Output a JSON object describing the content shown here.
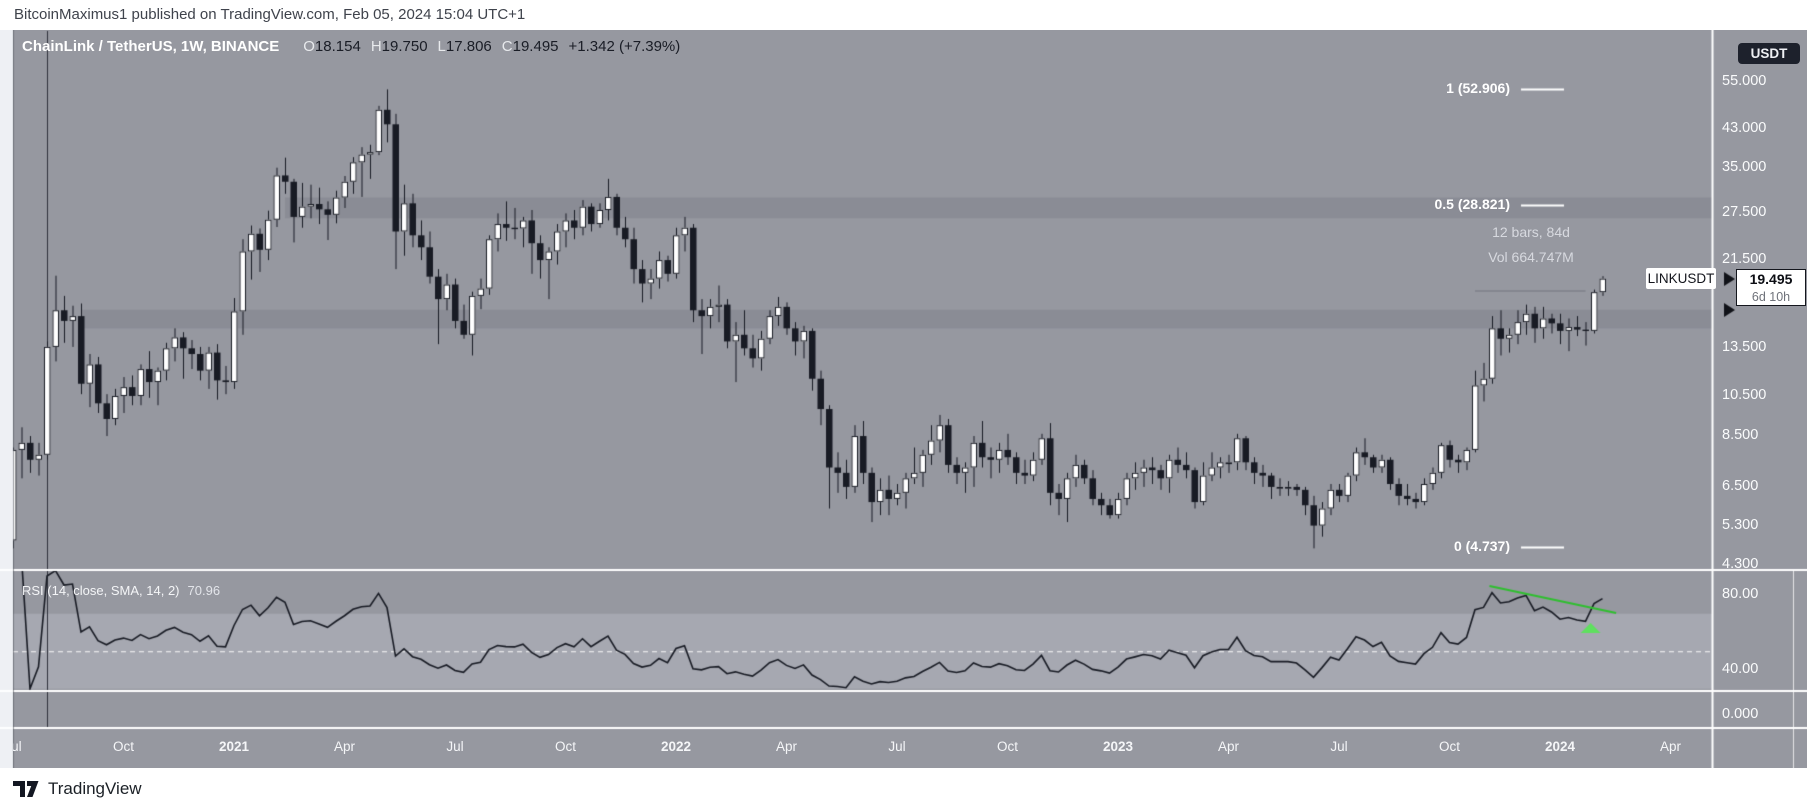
{
  "attribution": "BitcoinMaximus1 published on TradingView.com, Feb 05, 2024 15:04 UTC+1",
  "header": {
    "symbol_title": "ChainLink / TetherUS, 1W, BINANCE",
    "ohlc": [
      {
        "label": "O",
        "value": "18.154"
      },
      {
        "label": "H",
        "value": "19.750"
      },
      {
        "label": "L",
        "value": "17.806"
      },
      {
        "label": "C",
        "value": "19.495"
      }
    ],
    "change": "+1.342 (+7.39%)"
  },
  "axis_right": {
    "currency_badge": "USDT",
    "price_ticks": [
      {
        "label": "55.000",
        "value": 55.0
      },
      {
        "label": "43.000",
        "value": 43.0
      },
      {
        "label": "35.000",
        "value": 35.0
      },
      {
        "label": "27.500",
        "value": 27.5
      },
      {
        "label": "21.500",
        "value": 21.5
      },
      {
        "label": "13.500",
        "value": 13.5
      },
      {
        "label": "10.500",
        "value": 10.5
      },
      {
        "label": "8.500",
        "value": 8.5
      },
      {
        "label": "6.500",
        "value": 6.5
      },
      {
        "label": "5.300",
        "value": 5.3
      },
      {
        "label": "4.300",
        "value": 4.3
      }
    ],
    "rsi_ticks": [
      {
        "label": "80.00",
        "value": 80
      },
      {
        "label": "40.00",
        "value": 40
      }
    ],
    "lower_tick": "0.000"
  },
  "price_label": {
    "symbol_tag": "LINKUSDT",
    "last_price": "19.495",
    "countdown": "6d 10h"
  },
  "measure_tool": {
    "line1": "12 bars, 84d",
    "line2": "Vol 664.747M"
  },
  "rsi_legend": {
    "title": "RSI (14, close, SMA, 14, 2)",
    "value": "70.96"
  },
  "time_ticks": [
    {
      "label": "Jul",
      "week": 0
    },
    {
      "label": "Oct",
      "week": 13
    },
    {
      "label": "2021",
      "week": 26,
      "bold": true
    },
    {
      "label": "Apr",
      "week": 39
    },
    {
      "label": "Jul",
      "week": 52
    },
    {
      "label": "Oct",
      "week": 65
    },
    {
      "label": "2022",
      "week": 78,
      "bold": true
    },
    {
      "label": "Apr",
      "week": 91
    },
    {
      "label": "Jul",
      "week": 104
    },
    {
      "label": "Oct",
      "week": 117
    },
    {
      "label": "2023",
      "week": 130,
      "bold": true
    },
    {
      "label": "Apr",
      "week": 143
    },
    {
      "label": "Jul",
      "week": 156
    },
    {
      "label": "Oct",
      "week": 169
    },
    {
      "label": "2024",
      "week": 182,
      "bold": true
    },
    {
      "label": "Apr",
      "week": 195
    }
  ],
  "footer": {
    "brand": "TradingView"
  },
  "colors": {
    "background": "#9698a0",
    "left_margin": "#eef0f4",
    "zone_band": "#8a8c95",
    "rsi_band": "#a6a8b1",
    "candle_dark": "#181b24",
    "candle_light": "#ffffff",
    "fib_line": "#ffffff",
    "level_line": "#7e818a",
    "vline": "#2e313b",
    "separator": "#ffffff",
    "accent_green": "#2fbf2f",
    "accent_green_light": "#5fe05f",
    "arrow_black": "#101218"
  },
  "chart_data": {
    "type": "candlestick",
    "title": "ChainLink / TetherUS, 1W, BINANCE",
    "symbol": "LINKUSDT",
    "exchange": "BINANCE",
    "interval": "1W",
    "quote_currency": "USDT",
    "price_scale": "log",
    "ylim": [
      4.2,
      58
    ],
    "start_week": "2020-07-06",
    "interval_days": 7,
    "last_bar_ohlc": {
      "open": 18.154,
      "high": 19.75,
      "low": 17.806,
      "close": 19.495,
      "change": 1.342,
      "change_pct": 7.39
    },
    "candles": [
      [
        4.9,
        8,
        4.7,
        7.9
      ],
      [
        7.9,
        8.9,
        6.8,
        8.2
      ],
      [
        8.2,
        8.5,
        7,
        7.5
      ],
      [
        7.5,
        8.2,
        6.9,
        7.7
      ],
      [
        7.7,
        14,
        7.5,
        13.6
      ],
      [
        13.6,
        19.8,
        12.6,
        16.5
      ],
      [
        16.5,
        17.8,
        13.9,
        15.6
      ],
      [
        15.6,
        16.9,
        13.6,
        16
      ],
      [
        16,
        17.1,
        10.6,
        11.2
      ],
      [
        11.2,
        13.1,
        9.9,
        12.4
      ],
      [
        12.4,
        12.9,
        9.6,
        10.1
      ],
      [
        10.1,
        10.6,
        8.5,
        9.3
      ],
      [
        9.3,
        10.9,
        9,
        10.5
      ],
      [
        10.5,
        11.6,
        9.6,
        11
      ],
      [
        11,
        11.7,
        10,
        10.5
      ],
      [
        10.5,
        12.4,
        10,
        12.1
      ],
      [
        12.1,
        13.3,
        10.4,
        11.3
      ],
      [
        11.3,
        12.2,
        10,
        12
      ],
      [
        12,
        13.9,
        11.4,
        13.5
      ],
      [
        13.5,
        15,
        12.6,
        14.3
      ],
      [
        14.3,
        14.7,
        11.5,
        13.5
      ],
      [
        13.5,
        14.1,
        12.1,
        13.1
      ],
      [
        13.1,
        13.6,
        11.4,
        12
      ],
      [
        12,
        13.6,
        10.9,
        13.2
      ],
      [
        13.2,
        13.8,
        10.3,
        11.4
      ],
      [
        11.4,
        12.3,
        10.6,
        11.3
      ],
      [
        11.3,
        17.6,
        10.9,
        16.4
      ],
      [
        16.4,
        24,
        14.5,
        22.5
      ],
      [
        22.5,
        25.8,
        19.4,
        24.7
      ],
      [
        24.7,
        25.4,
        20.2,
        22.7
      ],
      [
        22.7,
        27.9,
        21.5,
        26.6
      ],
      [
        26.6,
        35,
        25.6,
        33.6
      ],
      [
        33.6,
        36.9,
        30.5,
        32.5
      ],
      [
        32.5,
        33,
        23.6,
        27
      ],
      [
        27,
        32.3,
        25.5,
        28.5
      ],
      [
        28.5,
        32,
        26.8,
        28.9
      ],
      [
        28.9,
        31.5,
        26,
        28.1
      ],
      [
        28.1,
        29.3,
        23.9,
        27.3
      ],
      [
        27.3,
        31,
        26.1,
        29.9
      ],
      [
        29.9,
        33.5,
        28.3,
        32.5
      ],
      [
        32.5,
        37,
        30.5,
        36
      ],
      [
        36,
        39,
        30,
        37.5
      ],
      [
        37.5,
        39.5,
        33,
        38
      ],
      [
        38,
        48.5,
        37.4,
        47.5
      ],
      [
        47.5,
        52.9,
        40,
        44
      ],
      [
        44,
        46.5,
        20.5,
        25
      ],
      [
        25,
        32,
        22,
        29
      ],
      [
        29,
        30.5,
        23,
        24.5
      ],
      [
        24.5,
        26.5,
        21.5,
        23
      ],
      [
        23,
        25,
        19,
        19.7
      ],
      [
        19.7,
        20.5,
        13.8,
        17.5
      ],
      [
        17.5,
        20,
        16.5,
        18.9
      ],
      [
        18.9,
        19.5,
        15,
        15.6
      ],
      [
        15.6,
        17,
        14.2,
        14.5
      ],
      [
        14.5,
        18.2,
        13,
        17.8
      ],
      [
        17.8,
        19.5,
        16.6,
        18.5
      ],
      [
        18.5,
        24.5,
        17.9,
        24
      ],
      [
        24,
        27.5,
        22.5,
        26
      ],
      [
        26,
        29.3,
        23.8,
        25.5
      ],
      [
        25.5,
        28.3,
        24,
        25.4
      ],
      [
        25.4,
        27,
        23,
        26.5
      ],
      [
        26.5,
        28,
        20,
        23.5
      ],
      [
        23.5,
        24.5,
        19.5,
        21.5
      ],
      [
        21.5,
        23,
        17.5,
        22.5
      ],
      [
        22.5,
        26,
        21,
        25
      ],
      [
        25,
        27.5,
        23,
        26.5
      ],
      [
        26.5,
        28,
        24,
        25.5
      ],
      [
        25.5,
        29.5,
        24.5,
        28.5
      ],
      [
        28.5,
        29,
        25,
        26
      ],
      [
        26,
        29,
        25.5,
        28
      ],
      [
        28,
        33,
        26.5,
        30
      ],
      [
        30,
        30.5,
        24.5,
        25.5
      ],
      [
        25.5,
        27,
        23,
        24
      ],
      [
        24,
        25.5,
        19,
        20.5
      ],
      [
        20.5,
        21.5,
        17.2,
        19
      ],
      [
        19,
        20.5,
        17.5,
        19.5
      ],
      [
        19.5,
        22.5,
        18.5,
        21.5
      ],
      [
        21.5,
        22,
        19.2,
        20
      ],
      [
        20,
        25.5,
        19.5,
        24.5
      ],
      [
        24.5,
        27,
        22.5,
        25.5
      ],
      [
        25.5,
        26,
        15.5,
        16.5
      ],
      [
        16.5,
        17.5,
        13.1,
        16
      ],
      [
        16,
        17.5,
        15,
        16.8
      ],
      [
        16.8,
        18.8,
        15.5,
        17
      ],
      [
        17,
        17.5,
        13.5,
        14
      ],
      [
        14,
        15.5,
        11.3,
        14.5
      ],
      [
        14.5,
        16.5,
        13,
        13.5
      ],
      [
        13.5,
        14.5,
        12.2,
        12.8
      ],
      [
        12.8,
        14.8,
        12,
        14.2
      ],
      [
        14.2,
        16.5,
        13.8,
        16
      ],
      [
        16,
        17.7,
        15.2,
        16.8
      ],
      [
        16.8,
        17.2,
        14.5,
        15
      ],
      [
        15,
        15.5,
        13,
        14
      ],
      [
        14,
        15.2,
        12.8,
        14.8
      ],
      [
        14.8,
        15,
        10.8,
        11.5
      ],
      [
        11.5,
        12,
        9,
        9.8
      ],
      [
        9.8,
        10,
        5.8,
        7.2
      ],
      [
        7.2,
        7.8,
        6.3,
        7
      ],
      [
        7,
        7.5,
        6.1,
        6.5
      ],
      [
        6.5,
        9,
        6.3,
        8.5
      ],
      [
        8.5,
        9.2,
        6.6,
        7
      ],
      [
        7,
        7.2,
        5.4,
        6
      ],
      [
        6,
        6.8,
        5.6,
        6.4
      ],
      [
        6.4,
        6.9,
        5.6,
        6.1
      ],
      [
        6.1,
        6.6,
        5.9,
        6.3
      ],
      [
        6.3,
        7,
        5.8,
        6.8
      ],
      [
        6.8,
        8,
        6.6,
        7
      ],
      [
        7,
        7.9,
        6.5,
        7.7
      ],
      [
        7.7,
        9,
        7.3,
        8.3
      ],
      [
        8.3,
        9.5,
        7.8,
        9
      ],
      [
        9,
        9.3,
        7,
        7.3
      ],
      [
        7.3,
        7.6,
        6.6,
        7
      ],
      [
        7,
        7.4,
        6.3,
        7.2
      ],
      [
        7.2,
        8.5,
        6.5,
        8.2
      ],
      [
        8.2,
        9.2,
        7.2,
        7.6
      ],
      [
        7.6,
        8,
        6.8,
        7.5
      ],
      [
        7.5,
        8.2,
        7,
        7.9
      ],
      [
        7.9,
        8.6,
        7.3,
        7.6
      ],
      [
        7.6,
        7.8,
        6.6,
        7
      ],
      [
        7,
        7.5,
        6.6,
        6.9
      ],
      [
        6.9,
        7.8,
        6.7,
        7.5
      ],
      [
        7.5,
        8.6,
        7.3,
        8.4
      ],
      [
        8.4,
        9.1,
        5.9,
        6.3
      ],
      [
        6.3,
        6.6,
        5.6,
        6.1
      ],
      [
        6.1,
        7,
        5.4,
        6.8
      ],
      [
        6.8,
        7.7,
        6.5,
        7.3
      ],
      [
        7.3,
        7.5,
        6.6,
        6.8
      ],
      [
        6.8,
        7.1,
        5.9,
        6.1
      ],
      [
        6.1,
        6.3,
        5.6,
        5.9
      ],
      [
        5.9,
        6.1,
        5.5,
        5.6
      ],
      [
        5.6,
        6.3,
        5.5,
        6.1
      ],
      [
        6.1,
        7,
        5.9,
        6.8
      ],
      [
        6.8,
        7.4,
        6.4,
        7
      ],
      [
        7,
        7.5,
        6.5,
        7.2
      ],
      [
        7.2,
        7.6,
        6.6,
        7.1
      ],
      [
        7.1,
        7.3,
        6.4,
        6.8
      ],
      [
        6.8,
        7.7,
        6.3,
        7.5
      ],
      [
        7.5,
        8,
        7,
        7.3
      ],
      [
        7.3,
        7.8,
        6.8,
        7.1
      ],
      [
        7.1,
        7.2,
        5.8,
        6
      ],
      [
        6,
        7.4,
        5.9,
        6.9
      ],
      [
        6.9,
        7.8,
        6.7,
        7.2
      ],
      [
        7.2,
        7.6,
        6.8,
        7.4
      ],
      [
        7.4,
        7.7,
        7,
        7.4
      ],
      [
        7.4,
        8.6,
        7.1,
        8.4
      ],
      [
        8.4,
        8.5,
        7.1,
        7.4
      ],
      [
        7.4,
        7.6,
        6.6,
        7
      ],
      [
        7,
        7.3,
        6.5,
        6.9
      ],
      [
        6.9,
        7,
        6.1,
        6.5
      ],
      [
        6.5,
        6.8,
        6.2,
        6.5
      ],
      [
        6.5,
        6.7,
        6.2,
        6.5
      ],
      [
        6.5,
        6.6,
        6.2,
        6.4
      ],
      [
        6.4,
        6.5,
        5.6,
        5.9
      ],
      [
        5.9,
        6.2,
        4.7,
        5.3
      ],
      [
        5.3,
        6,
        5,
        5.8
      ],
      [
        5.8,
        6.6,
        5.6,
        6.4
      ],
      [
        6.4,
        6.6,
        6,
        6.2
      ],
      [
        6.2,
        7,
        6,
        6.9
      ],
      [
        6.9,
        8,
        6.7,
        7.8
      ],
      [
        7.8,
        8.4,
        7.3,
        7.6
      ],
      [
        7.6,
        7.7,
        7,
        7.2
      ],
      [
        7.2,
        7.7,
        7,
        7.5
      ],
      [
        7.5,
        7.6,
        6.4,
        6.6
      ],
      [
        6.6,
        6.8,
        5.9,
        6.2
      ],
      [
        6.2,
        6.6,
        5.9,
        6.1
      ],
      [
        6.1,
        6.3,
        5.8,
        6
      ],
      [
        6,
        6.8,
        5.9,
        6.6
      ],
      [
        6.6,
        7.2,
        6.4,
        7
      ],
      [
        7,
        8.2,
        6.8,
        8.1
      ],
      [
        8.1,
        8.3,
        7.2,
        7.5
      ],
      [
        7.5,
        7.7,
        7,
        7.4
      ],
      [
        7.4,
        8,
        7.1,
        7.9
      ],
      [
        7.9,
        12,
        7.8,
        11.1
      ],
      [
        11.1,
        12.5,
        10.2,
        11.5
      ],
      [
        11.5,
        16,
        11.2,
        15
      ],
      [
        15,
        16.5,
        13,
        14.2
      ],
      [
        14.2,
        15,
        13.2,
        14.5
      ],
      [
        14.5,
        16.5,
        13.8,
        15.5
      ],
      [
        15.5,
        17,
        14.5,
        16.2
      ],
      [
        16.2,
        16.8,
        13.9,
        15
      ],
      [
        15,
        16.8,
        14.2,
        15.8
      ],
      [
        15.8,
        16.2,
        14.6,
        15.4
      ],
      [
        15.4,
        16.2,
        13.8,
        14.8
      ],
      [
        14.8,
        15.8,
        13.3,
        15.1
      ],
      [
        15.1,
        16,
        14.4,
        14.9
      ],
      [
        14.9,
        15.5,
        13.7,
        14.8
      ],
      [
        14.8,
        18.4,
        14.6,
        18.154
      ],
      [
        18.154,
        19.75,
        17.806,
        19.495
      ]
    ],
    "indicator": {
      "name": "RSI",
      "params": [
        14,
        "close",
        "SMA",
        14,
        2
      ],
      "last_value": 70.96,
      "overbought": 70,
      "oversold": 30,
      "middle": 50,
      "visible_ticks": [
        80,
        40
      ]
    },
    "fib_levels": [
      {
        "label": "1 (52.906)",
        "value": 52.906
      },
      {
        "label": "0.5 (28.821)",
        "value": 28.821
      },
      {
        "label": "0 (4.737)",
        "value": 4.737
      }
    ],
    "zones": [
      {
        "from_price": 26.8,
        "to_price": 29.9,
        "start_week": 32
      },
      {
        "from_price": 15.0,
        "to_price": 16.55,
        "start_week": 8
      }
    ],
    "vertical_line_week": 4,
    "resistance_line": {
      "price": 18.27,
      "from_week": 172,
      "to_week": 185
    },
    "rsi_trendline": {
      "from": {
        "week": 173.7,
        "rsi": 84.8
      },
      "to": {
        "week": 188.6,
        "rsi": 70.4
      }
    },
    "rsi_marker": {
      "week": 185.6,
      "rsi_apex": 65.1,
      "rsi_base": 59.7
    },
    "measured_range": {
      "bars": 12,
      "days": 84,
      "volume": "664.747M"
    }
  }
}
